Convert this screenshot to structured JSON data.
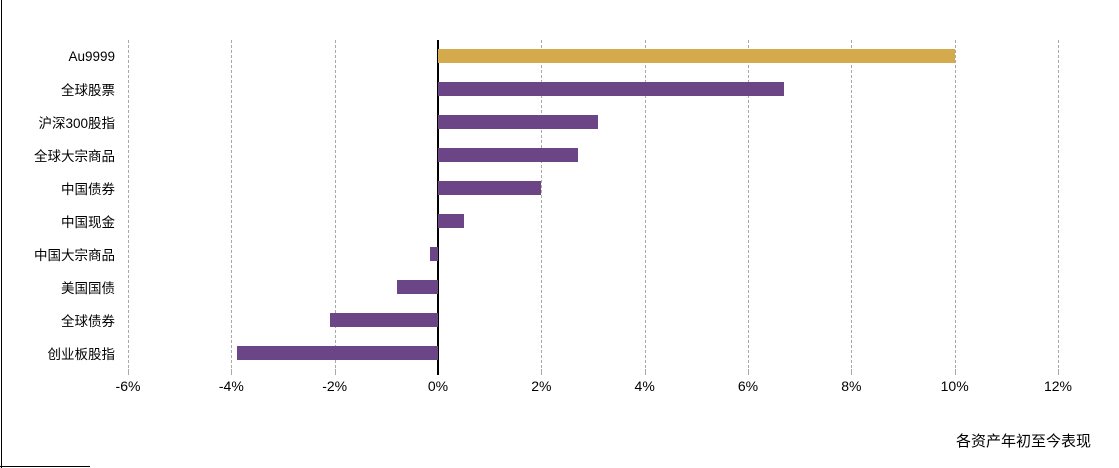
{
  "chart_data": {
    "type": "bar",
    "orientation": "horizontal",
    "title": "",
    "caption": "各资产年初至今表现",
    "categories": [
      "Au9999",
      "全球股票",
      "沪深300股指",
      "全球大宗商品",
      "中国债券",
      "中国现金",
      "中国大宗商品",
      "美国国债",
      "全球债券",
      "创业板股指"
    ],
    "values": [
      10.0,
      6.7,
      3.1,
      2.7,
      2.0,
      0.5,
      -0.15,
      -0.8,
      -2.1,
      -3.9
    ],
    "unit": "%",
    "xlim": [
      -6,
      12
    ],
    "x_ticks": [
      -6,
      -4,
      -2,
      0,
      2,
      4,
      6,
      8,
      10,
      12
    ],
    "x_tick_labels": [
      "-6%",
      "-4%",
      "-2%",
      "0%",
      "2%",
      "4%",
      "6%",
      "8%",
      "10%",
      "12%"
    ],
    "grid": true,
    "legend": false,
    "highlight_index": 0,
    "colors": {
      "highlight_bar": "#D5AA4D",
      "default_bar": "#6C4586",
      "gridline": "#A8A8A8",
      "zero_axis": "#000000",
      "text": "#000000"
    }
  }
}
